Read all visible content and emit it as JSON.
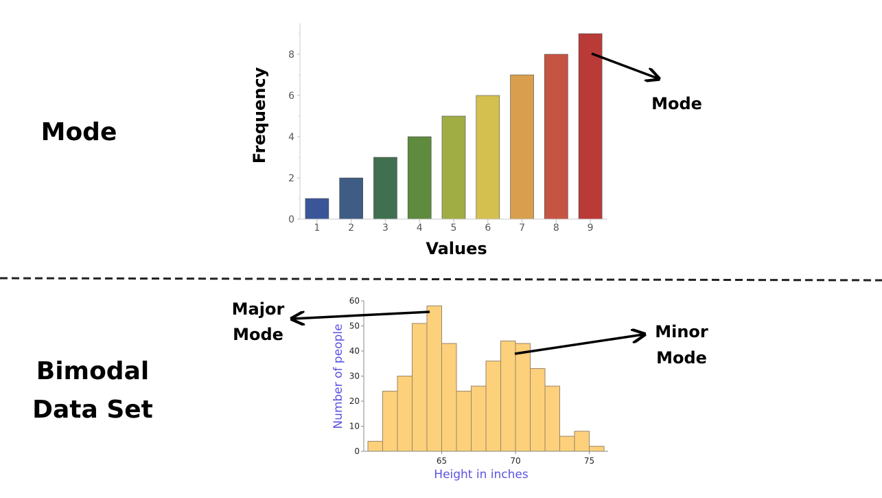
{
  "left_labels": {
    "mode": "Mode",
    "bimodal_line1": "Bimodal",
    "bimodal_line2": "Data Set"
  },
  "colors": {
    "divider": "#222222",
    "histogram_fill": "#fdd07c",
    "histogram_edge": "#9a8566",
    "axis_title_blue": "#5b52e0"
  },
  "chart_data": [
    {
      "type": "bar",
      "xlabel": "Values",
      "ylabel": "Frequency",
      "categories": [
        "1",
        "2",
        "3",
        "4",
        "5",
        "6",
        "7",
        "8",
        "9"
      ],
      "values": [
        1,
        2,
        3,
        4,
        5,
        6,
        7,
        8,
        9
      ],
      "ylim": [
        0,
        9.5
      ],
      "yticks": [
        "0",
        "2",
        "4",
        "6",
        "8"
      ],
      "bar_colors": [
        "#3b5698",
        "#3f5c84",
        "#417050",
        "#5e8b3e",
        "#a0ad45",
        "#d4c04f",
        "#d99f4e",
        "#c65442",
        "#ba3a38"
      ],
      "annotations": [
        "Mode"
      ]
    },
    {
      "type": "bar",
      "subtype": "histogram",
      "xlabel": "Height in inches",
      "ylabel": "Number of people",
      "bin_centers": [
        60.5,
        61.5,
        62.5,
        63.5,
        64.5,
        65.5,
        66.5,
        67.5,
        68.5,
        69.5,
        70.5,
        71.5,
        72.5,
        73.5,
        74.5,
        75.5
      ],
      "values": [
        4,
        24,
        30,
        51,
        58,
        43,
        24,
        26,
        36,
        44,
        43,
        33,
        26,
        6,
        8,
        2
      ],
      "xlim": [
        60,
        76
      ],
      "ylim": [
        0,
        60
      ],
      "xticks": [
        "65",
        "70",
        "75"
      ],
      "yticks": [
        "0",
        "10",
        "20",
        "30",
        "40",
        "50",
        "60"
      ],
      "annotations": [
        "Major",
        "Mode",
        "Minor",
        "Mode"
      ]
    }
  ]
}
